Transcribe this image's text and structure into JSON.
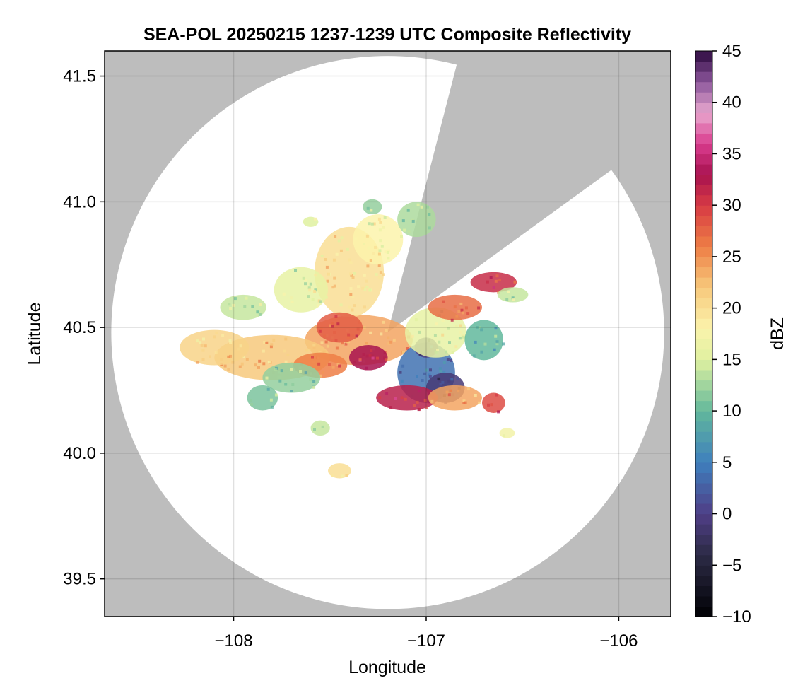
{
  "chart_data": {
    "type": "heatmap",
    "title": "SEA-POL 20250215 1237-1239 UTC Composite Reflectivity",
    "xlabel": "Longitude",
    "ylabel": "Latitude",
    "xlim": [
      -108.67,
      -105.73
    ],
    "ylim": [
      39.35,
      41.6
    ],
    "xticks": [
      -108,
      -107,
      -106
    ],
    "yticks": [
      39.5,
      40.0,
      40.5,
      41.0,
      41.5
    ],
    "grid": true,
    "background_color": "#bdbdbd",
    "radar": {
      "center_lon": -107.2,
      "center_lat": 40.48,
      "coverage_radius_deg_lat": 1.1,
      "blocked_sector_from_lat": 41.52,
      "blocked_sector_from_lon": -106.85,
      "blocked_sector_to_lat": 41.12,
      "blocked_sector_to_lon": -106.05
    },
    "colorbar": {
      "label": "dBZ",
      "min": -10,
      "max": 45,
      "ticks": [
        -10,
        -5,
        0,
        5,
        10,
        15,
        20,
        25,
        30,
        35,
        40,
        45
      ],
      "colormap": "spectral-reversed",
      "stops": [
        {
          "v": -10,
          "c": "#000004"
        },
        {
          "v": -4,
          "c": "#2c2a45"
        },
        {
          "v": 0,
          "c": "#4f3f86"
        },
        {
          "v": 5,
          "c": "#3e7fbd"
        },
        {
          "v": 10,
          "c": "#62b89c"
        },
        {
          "v": 15,
          "c": "#dff1a0"
        },
        {
          "v": 18,
          "c": "#fbf3ac"
        },
        {
          "v": 22,
          "c": "#f7c97c"
        },
        {
          "v": 26,
          "c": "#ee7e45"
        },
        {
          "v": 30,
          "c": "#d73b44"
        },
        {
          "v": 33,
          "c": "#a8124f"
        },
        {
          "v": 36,
          "c": "#d93c8e"
        },
        {
          "v": 39,
          "c": "#e8a8cf"
        },
        {
          "v": 42,
          "c": "#8c569b"
        },
        {
          "v": 45,
          "c": "#2d0a40"
        }
      ]
    },
    "reflectivity_cells": [
      {
        "lon": -107.35,
        "lat": 40.45,
        "dbz": 24,
        "rx": 0.28,
        "ry": 0.1
      },
      {
        "lon": -107.8,
        "lat": 40.38,
        "dbz": 22,
        "rx": 0.3,
        "ry": 0.09
      },
      {
        "lon": -108.1,
        "lat": 40.42,
        "dbz": 21,
        "rx": 0.18,
        "ry": 0.07
      },
      {
        "lon": -107.4,
        "lat": 40.72,
        "dbz": 20,
        "rx": 0.18,
        "ry": 0.18
      },
      {
        "lon": -107.25,
        "lat": 40.85,
        "dbz": 18,
        "rx": 0.13,
        "ry": 0.1
      },
      {
        "lon": -107.05,
        "lat": 40.93,
        "dbz": 13,
        "rx": 0.1,
        "ry": 0.07
      },
      {
        "lon": -107.65,
        "lat": 40.65,
        "dbz": 16,
        "rx": 0.14,
        "ry": 0.09
      },
      {
        "lon": -107.95,
        "lat": 40.58,
        "dbz": 14,
        "rx": 0.12,
        "ry": 0.05
      },
      {
        "lon": -107.45,
        "lat": 40.5,
        "dbz": 28,
        "rx": 0.12,
        "ry": 0.06
      },
      {
        "lon": -107.3,
        "lat": 40.38,
        "dbz": 33,
        "rx": 0.1,
        "ry": 0.05
      },
      {
        "lon": -107.55,
        "lat": 40.35,
        "dbz": 26,
        "rx": 0.14,
        "ry": 0.05
      },
      {
        "lon": -107.7,
        "lat": 40.3,
        "dbz": 12,
        "rx": 0.15,
        "ry": 0.06
      },
      {
        "lon": -107.85,
        "lat": 40.22,
        "dbz": 11,
        "rx": 0.08,
        "ry": 0.05
      },
      {
        "lon": -107.0,
        "lat": 40.32,
        "dbz": 4,
        "rx": 0.15,
        "ry": 0.12
      },
      {
        "lon": -106.9,
        "lat": 40.26,
        "dbz": -1,
        "rx": 0.1,
        "ry": 0.06
      },
      {
        "lon": -107.0,
        "lat": 40.42,
        "dbz": 0,
        "rx": 0.06,
        "ry": 0.04
      },
      {
        "lon": -107.1,
        "lat": 40.22,
        "dbz": 32,
        "rx": 0.16,
        "ry": 0.05
      },
      {
        "lon": -106.85,
        "lat": 40.22,
        "dbz": 24,
        "rx": 0.14,
        "ry": 0.05
      },
      {
        "lon": -106.65,
        "lat": 40.2,
        "dbz": 29,
        "rx": 0.06,
        "ry": 0.04
      },
      {
        "lon": -106.95,
        "lat": 40.48,
        "dbz": 16,
        "rx": 0.16,
        "ry": 0.1
      },
      {
        "lon": -106.85,
        "lat": 40.58,
        "dbz": 27,
        "rx": 0.14,
        "ry": 0.05
      },
      {
        "lon": -106.65,
        "lat": 40.68,
        "dbz": 31,
        "rx": 0.12,
        "ry": 0.04
      },
      {
        "lon": -106.7,
        "lat": 40.45,
        "dbz": 10,
        "rx": 0.1,
        "ry": 0.08
      },
      {
        "lon": -106.55,
        "lat": 40.63,
        "dbz": 14,
        "rx": 0.08,
        "ry": 0.03
      },
      {
        "lon": -107.45,
        "lat": 39.93,
        "dbz": 20,
        "rx": 0.06,
        "ry": 0.03
      },
      {
        "lon": -107.55,
        "lat": 40.1,
        "dbz": 14,
        "rx": 0.05,
        "ry": 0.03
      },
      {
        "lon": -106.58,
        "lat": 40.08,
        "dbz": 17,
        "rx": 0.04,
        "ry": 0.02
      },
      {
        "lon": -107.6,
        "lat": 40.92,
        "dbz": 15,
        "rx": 0.04,
        "ry": 0.02
      },
      {
        "lon": -107.28,
        "lat": 40.98,
        "dbz": 12,
        "rx": 0.05,
        "ry": 0.03
      }
    ]
  }
}
